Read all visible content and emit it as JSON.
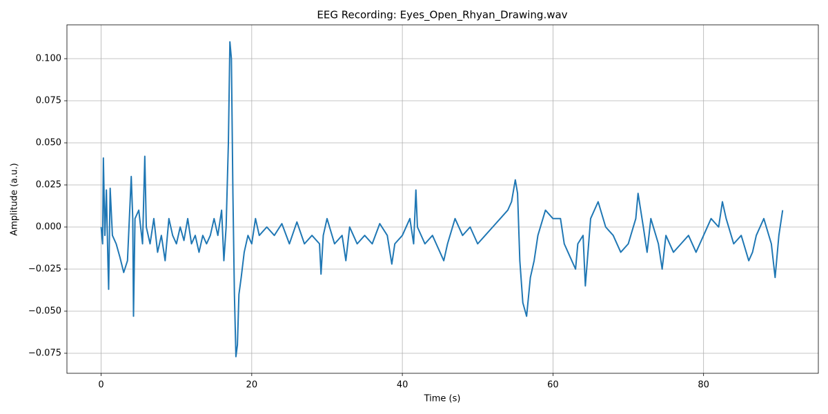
{
  "chart_data": {
    "type": "line",
    "title": "EEG Recording: Eyes_Open_Rhyan_Drawing.wav",
    "xlabel": "Time (s)",
    "ylabel": "Amplitude (a.u.)",
    "color": "#1f77b4",
    "grid": true,
    "xlim": [
      -4.54,
      95.24
    ],
    "xticks": [
      0,
      20,
      40,
      60,
      80
    ],
    "ylim": [
      -0.0869,
      0.1201
    ],
    "yticks": [
      {
        "value": -0.075,
        "label": "−0.075"
      },
      {
        "value": -0.05,
        "label": "−0.050"
      },
      {
        "value": -0.025,
        "label": "−0.025"
      },
      {
        "value": 0,
        "label": "0.000"
      },
      {
        "value": 0.025,
        "label": "0.025"
      },
      {
        "value": 0.05,
        "label": "0.050"
      },
      {
        "value": 0.075,
        "label": "0.075"
      },
      {
        "value": 0.1,
        "label": "0.100"
      }
    ],
    "x": [
      0,
      0.2,
      0.3,
      0.5,
      0.7,
      0.9,
      1.0,
      1.2,
      1.5,
      2,
      2.5,
      3,
      3.5,
      4,
      4.2,
      4.3,
      4.5,
      5,
      5.5,
      5.8,
      6,
      6.5,
      7,
      7.5,
      8,
      8.5,
      9,
      9.5,
      10,
      10.5,
      11,
      11.5,
      12,
      12.5,
      13,
      13.5,
      14,
      14.5,
      15,
      15.5,
      16,
      16.3,
      16.6,
      16.9,
      17.1,
      17.3,
      17.5,
      17.7,
      17.9,
      18.1,
      18.3,
      18.6,
      19,
      19.5,
      20,
      20.5,
      21,
      22,
      23,
      24,
      25,
      26,
      27,
      28,
      29,
      29.2,
      29.5,
      30,
      31,
      32,
      32.5,
      33,
      34,
      35,
      36,
      37,
      38,
      38.6,
      39,
      40,
      41,
      41.5,
      41.8,
      42,
      43,
      44,
      45,
      45.5,
      46,
      47,
      48,
      49,
      50,
      51,
      52,
      53,
      54,
      54.5,
      55,
      55.3,
      55.6,
      56,
      56.5,
      57,
      57.5,
      58,
      59,
      60,
      61,
      61.5,
      62,
      62.5,
      63,
      63.3,
      64,
      64.3,
      65,
      66,
      67,
      68,
      69,
      70,
      71,
      71.3,
      72,
      72.5,
      73,
      74,
      74.5,
      75,
      76,
      77,
      78,
      79,
      80,
      81,
      82,
      82.5,
      83,
      84,
      85,
      86,
      86.5,
      87,
      88,
      89,
      89.5,
      90,
      90.5
    ],
    "values": [
      0.0,
      -0.01,
      0.041,
      -0.005,
      0.022,
      -0.02,
      -0.037,
      0.023,
      -0.005,
      -0.01,
      -0.018,
      -0.027,
      -0.02,
      0.03,
      0.005,
      -0.053,
      0.005,
      0.01,
      -0.01,
      0.042,
      0.0,
      -0.01,
      0.005,
      -0.015,
      -0.005,
      -0.02,
      0.005,
      -0.005,
      -0.01,
      0.0,
      -0.008,
      0.005,
      -0.01,
      -0.005,
      -0.015,
      -0.005,
      -0.01,
      -0.005,
      0.005,
      -0.005,
      0.01,
      -0.02,
      0.0,
      0.05,
      0.11,
      0.1,
      0.02,
      -0.04,
      -0.077,
      -0.07,
      -0.04,
      -0.03,
      -0.015,
      -0.005,
      -0.01,
      0.005,
      -0.005,
      0.0,
      -0.005,
      0.002,
      -0.01,
      0.003,
      -0.01,
      -0.005,
      -0.01,
      -0.028,
      -0.005,
      0.005,
      -0.01,
      -0.005,
      -0.02,
      0.0,
      -0.01,
      -0.005,
      -0.01,
      0.002,
      -0.005,
      -0.022,
      -0.01,
      -0.005,
      0.005,
      -0.01,
      0.022,
      0.0,
      -0.01,
      -0.005,
      -0.015,
      -0.02,
      -0.01,
      0.005,
      -0.005,
      0.0,
      -0.01,
      -0.005,
      0.0,
      0.005,
      0.01,
      0.015,
      0.028,
      0.02,
      -0.02,
      -0.045,
      -0.053,
      -0.03,
      -0.02,
      -0.005,
      0.01,
      0.005,
      0.005,
      -0.01,
      -0.015,
      -0.02,
      -0.025,
      -0.01,
      -0.005,
      -0.035,
      0.005,
      0.015,
      0.0,
      -0.005,
      -0.015,
      -0.01,
      0.005,
      0.02,
      0.0,
      -0.015,
      0.005,
      -0.01,
      -0.025,
      -0.005,
      -0.015,
      -0.01,
      -0.005,
      -0.015,
      -0.005,
      0.005,
      0.0,
      0.015,
      0.005,
      -0.01,
      -0.005,
      -0.02,
      -0.015,
      -0.005,
      0.005,
      -0.01,
      -0.03,
      -0.005,
      0.01
    ]
  }
}
